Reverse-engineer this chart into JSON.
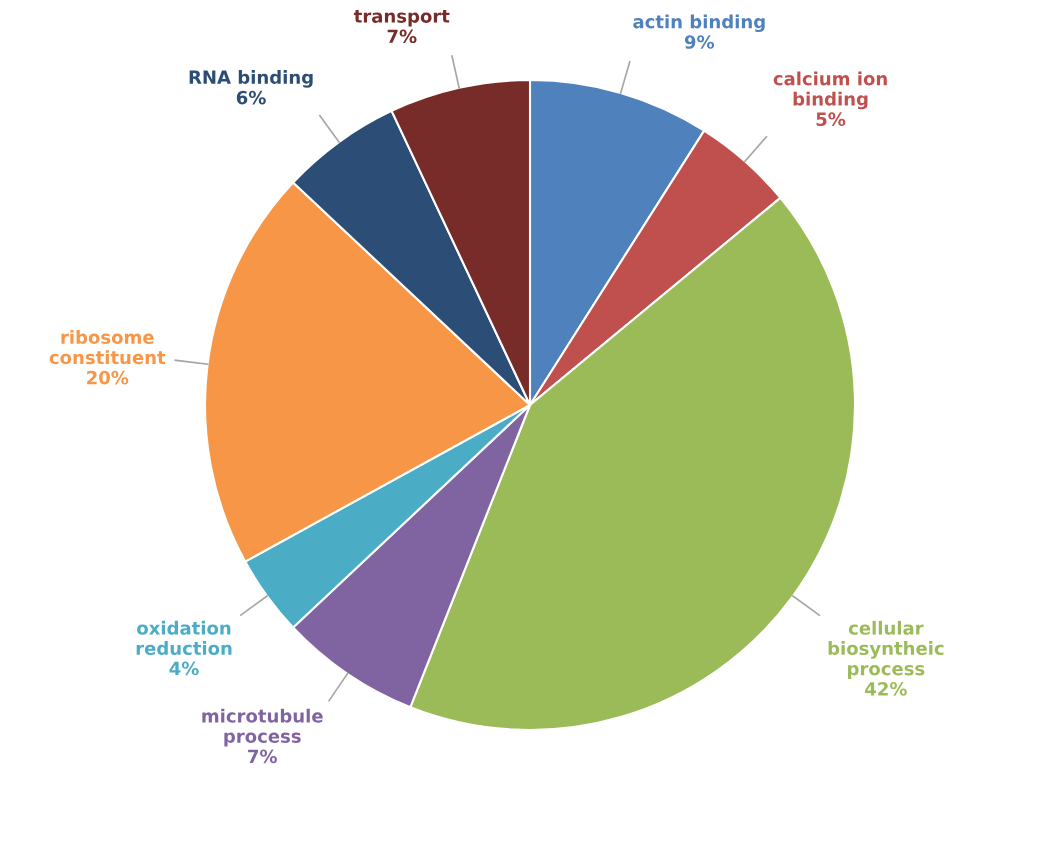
{
  "chart_data": {
    "type": "pie",
    "categories": [
      "actin binding",
      "calcium ion\nbinding",
      "cellular\nbiosyntheic\nprocess",
      "microtubule\nprocess",
      "oxidation\nreduction",
      "ribosome\nconstituent",
      "RNA binding",
      "transport"
    ],
    "values": [
      9,
      5,
      42,
      7,
      4,
      20,
      6,
      7
    ],
    "value_labels": [
      "9%",
      "5%",
      "42%",
      "7%",
      "4%",
      "20%",
      "6%",
      "7%"
    ],
    "colors": [
      "#4f81bd",
      "#c0504d",
      "#9bbb59",
      "#8064a2",
      "#4bacc6",
      "#f79646",
      "#2c4d75",
      "#772c2a"
    ]
  }
}
